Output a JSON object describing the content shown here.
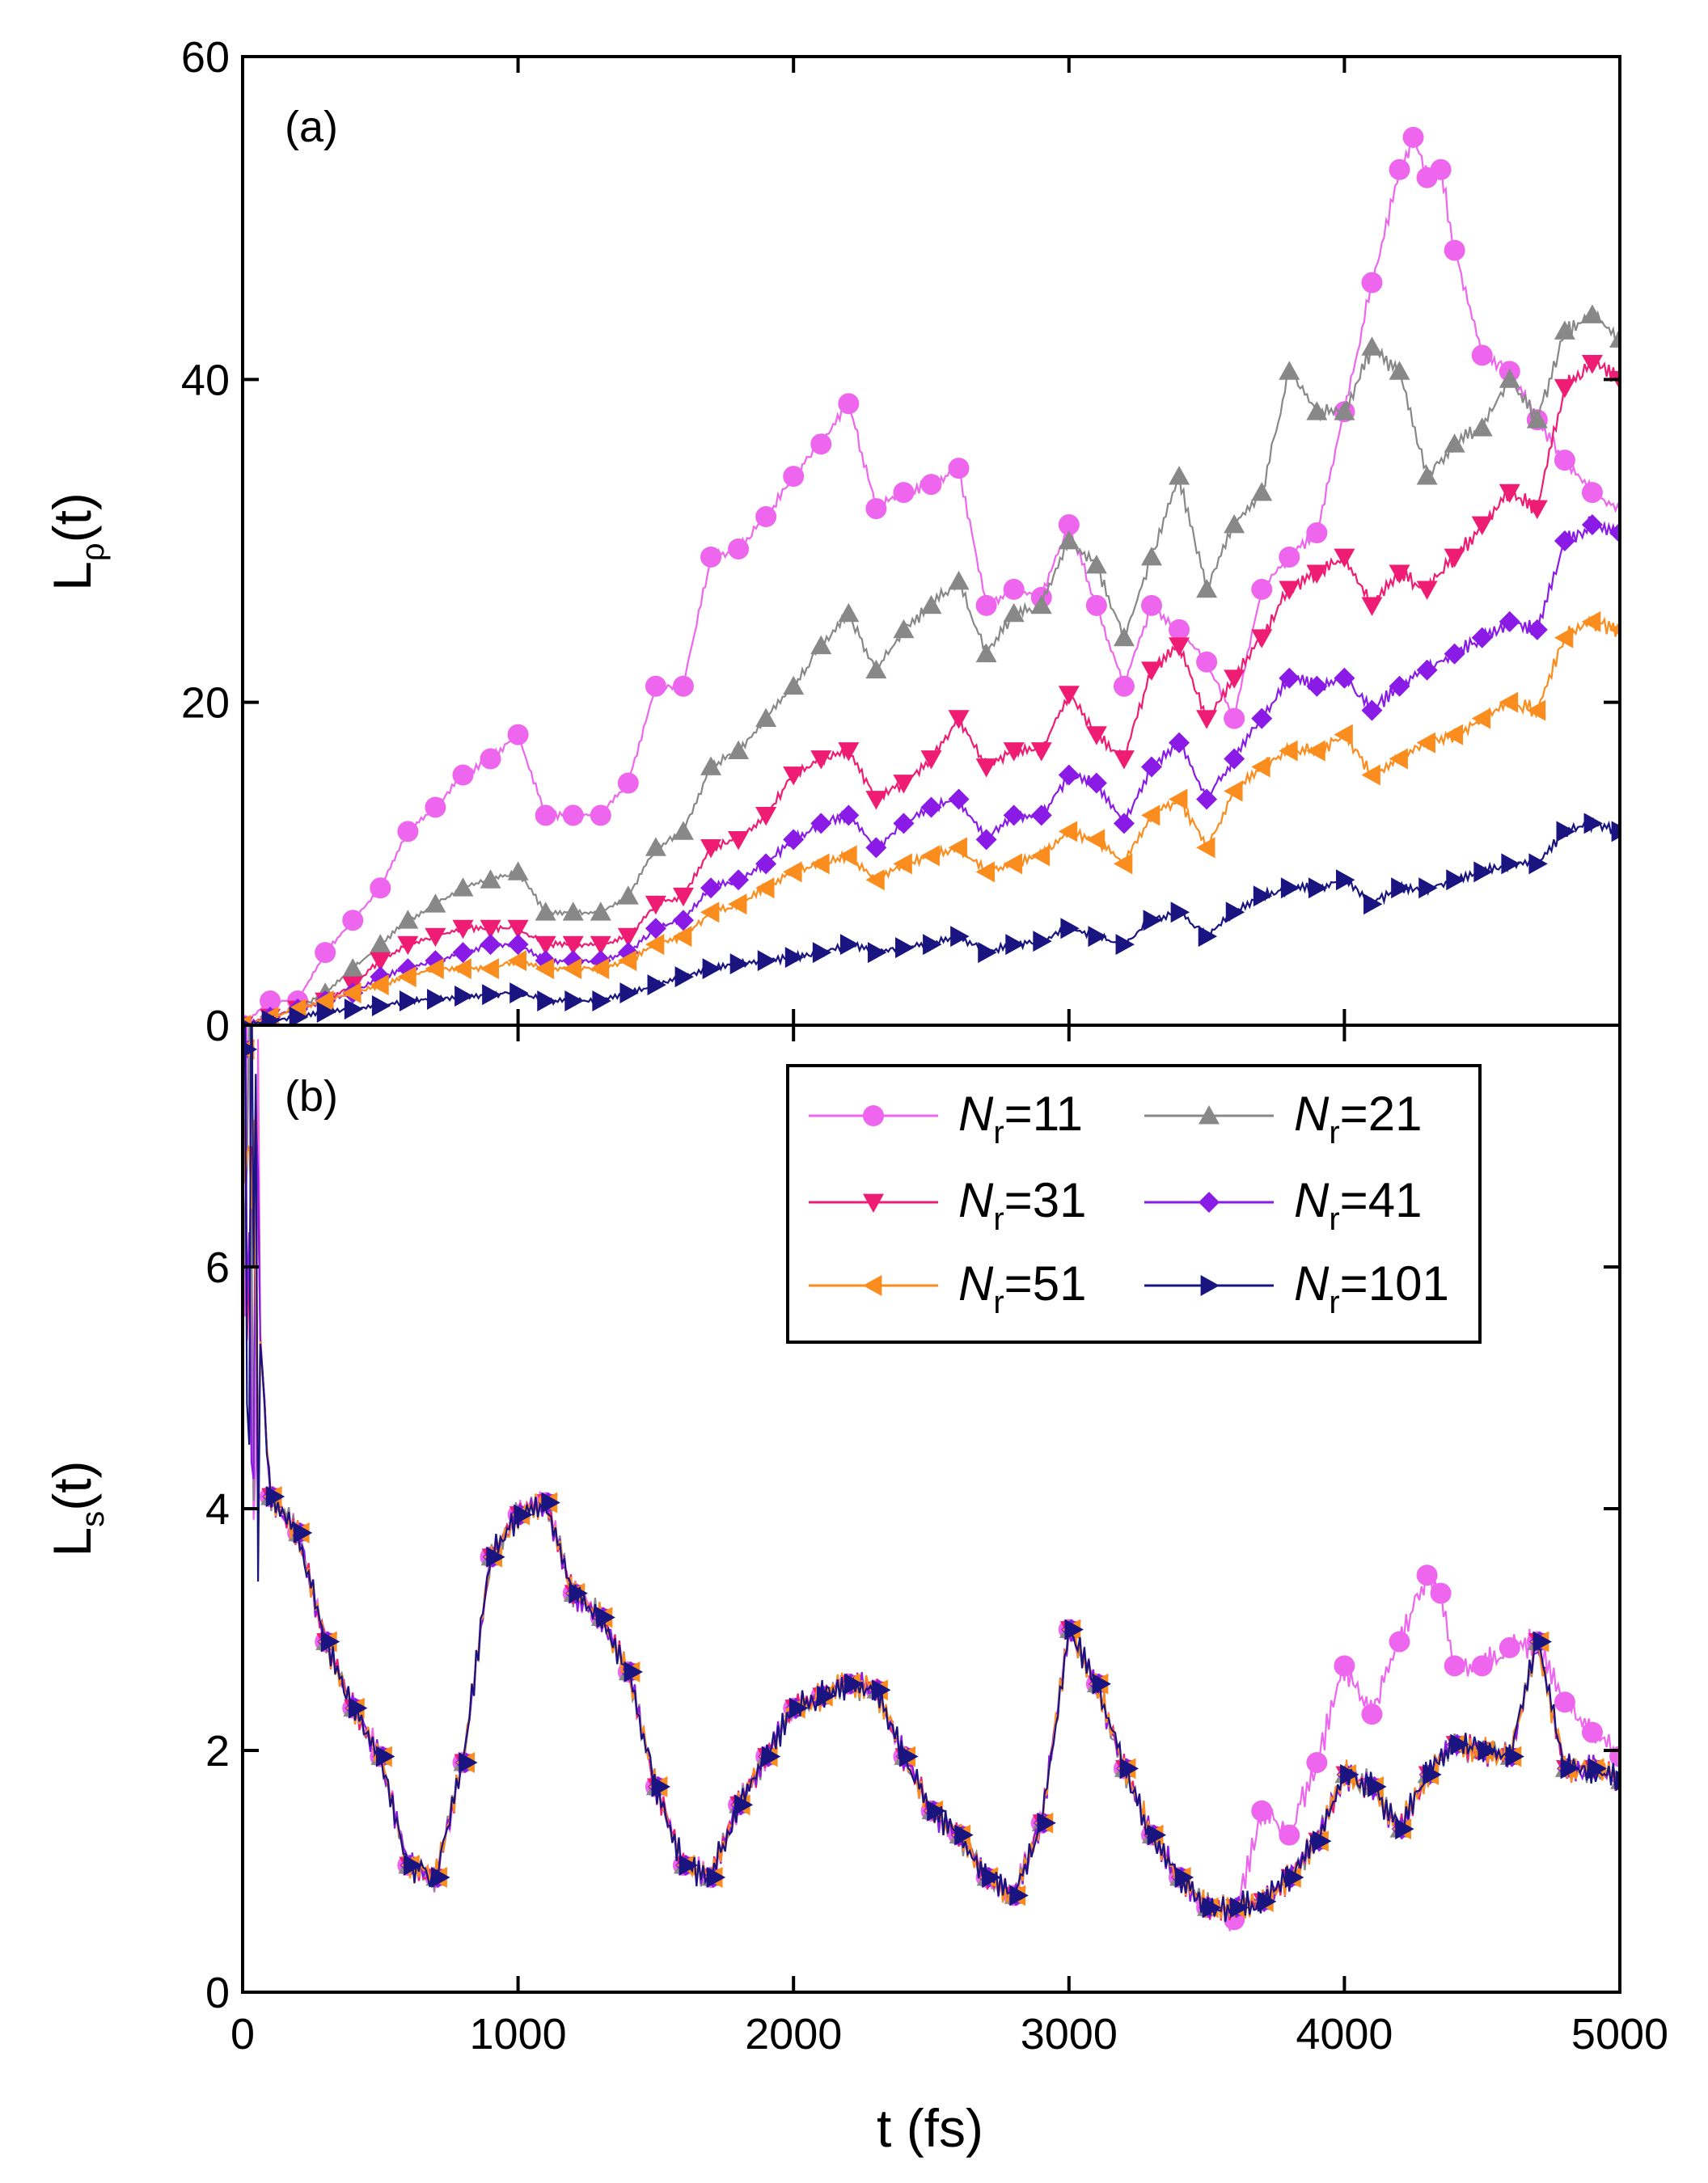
{
  "chart_data": [
    {
      "panel": "a",
      "type": "line",
      "label": "(a)",
      "ylabel": "L",
      "ylabel_sub": "ρ",
      "ylabel_tail": "(t)",
      "xlim": [
        0,
        5000
      ],
      "ylim": [
        0,
        60
      ],
      "xticks": [
        0,
        1000,
        2000,
        3000,
        4000,
        5000
      ],
      "yticks": [
        0,
        20,
        40,
        60
      ],
      "ytick_labels": [
        "0",
        "20",
        "40",
        "60"
      ],
      "series": [
        {
          "name": "N_r=11",
          "color": "#ee66ee",
          "marker": "circle",
          "x": [
            0,
            100,
            200,
            300,
            400,
            500,
            600,
            700,
            800,
            900,
            1000,
            1100,
            1200,
            1300,
            1400,
            1500,
            1600,
            1700,
            1800,
            1900,
            2000,
            2100,
            2200,
            2300,
            2400,
            2500,
            2600,
            2700,
            2800,
            2900,
            3000,
            3100,
            3200,
            3300,
            3400,
            3500,
            3600,
            3700,
            3800,
            3900,
            4000,
            4100,
            4200,
            4250,
            4300,
            4350,
            4400,
            4500,
            4600,
            4700,
            4800,
            4900,
            5000
          ],
          "y": [
            0,
            1.5,
            1.5,
            4.5,
            6.5,
            8.5,
            12,
            13.5,
            15.5,
            16.5,
            18,
            13,
            13,
            13,
            15,
            21,
            21,
            29,
            29.5,
            31.5,
            34,
            36,
            38.5,
            32,
            33,
            33.5,
            34.5,
            26,
            27,
            26.5,
            31,
            26,
            21,
            26,
            24.5,
            22.5,
            19,
            27,
            29,
            30.5,
            38,
            46,
            53,
            55,
            52.5,
            53,
            48,
            41.5,
            40.5,
            37.5,
            35,
            33,
            32
          ]
        },
        {
          "name": "N_r=21",
          "color": "#888888",
          "marker": "triangle-up",
          "x": [
            0,
            100,
            200,
            300,
            400,
            500,
            600,
            700,
            800,
            900,
            1000,
            1100,
            1200,
            1300,
            1400,
            1500,
            1600,
            1700,
            1800,
            1900,
            2000,
            2100,
            2200,
            2300,
            2400,
            2500,
            2600,
            2700,
            2800,
            2900,
            3000,
            3100,
            3200,
            3300,
            3400,
            3500,
            3600,
            3700,
            3800,
            3900,
            4000,
            4100,
            4200,
            4300,
            4400,
            4500,
            4600,
            4700,
            4800,
            4900,
            5000
          ],
          "y": [
            0,
            0.5,
            1,
            2,
            3.5,
            5,
            6.5,
            7.5,
            8.5,
            9,
            9.5,
            7,
            7,
            7,
            8,
            11,
            12,
            16,
            17,
            19,
            21,
            23.5,
            25.5,
            22,
            24.5,
            26,
            27.5,
            23,
            25.5,
            26,
            30,
            28.5,
            24,
            29,
            34,
            27,
            31,
            33,
            40.5,
            38,
            38,
            42,
            40.5,
            34,
            36,
            37,
            40,
            37.5,
            43,
            44,
            42.5
          ]
        },
        {
          "name": "N_r=31",
          "color": "#ee1c72",
          "marker": "triangle-down",
          "x": [
            0,
            100,
            200,
            300,
            400,
            500,
            600,
            700,
            800,
            900,
            1000,
            1100,
            1200,
            1300,
            1400,
            1500,
            1600,
            1700,
            1800,
            1900,
            2000,
            2100,
            2200,
            2300,
            2400,
            2500,
            2600,
            2700,
            2800,
            2900,
            3000,
            3100,
            3200,
            3300,
            3400,
            3500,
            3600,
            3700,
            3800,
            3900,
            4000,
            4100,
            4200,
            4300,
            4400,
            4500,
            4600,
            4700,
            4800,
            4900,
            5000
          ],
          "y": [
            0,
            0.5,
            1,
            1.5,
            2.5,
            4,
            5,
            5.5,
            6,
            6,
            6,
            5,
            5,
            5,
            5.5,
            7.5,
            8,
            11,
            11.5,
            13,
            15.5,
            16.5,
            17,
            14,
            15,
            16.5,
            19,
            16,
            17,
            17,
            20.5,
            18,
            16.5,
            22,
            23.5,
            19,
            21.5,
            24,
            27,
            28,
            29,
            26,
            28,
            27,
            29,
            31,
            33,
            32,
            39.5,
            41,
            40
          ]
        },
        {
          "name": "N_r=41",
          "color": "#8a1ae6",
          "marker": "diamond",
          "x": [
            0,
            100,
            200,
            300,
            400,
            500,
            600,
            700,
            800,
            900,
            1000,
            1100,
            1200,
            1300,
            1400,
            1500,
            1600,
            1700,
            1800,
            1900,
            2000,
            2100,
            2200,
            2300,
            2400,
            2500,
            2600,
            2700,
            2800,
            2900,
            3000,
            3100,
            3200,
            3300,
            3400,
            3500,
            3600,
            3700,
            3800,
            3900,
            4000,
            4100,
            4200,
            4300,
            4400,
            4500,
            4600,
            4700,
            4800,
            4900,
            5000
          ],
          "y": [
            0,
            0.5,
            1,
            1.5,
            2,
            3,
            3.5,
            4,
            4.5,
            5,
            5,
            4,
            4,
            4,
            4.5,
            6,
            6.5,
            8.5,
            9,
            10,
            11.5,
            12.5,
            13,
            11,
            12.5,
            13.5,
            14,
            11.5,
            13,
            13,
            15.5,
            15,
            12.5,
            16,
            17.5,
            14,
            16.5,
            19,
            21.5,
            21,
            21.5,
            19.5,
            21,
            22,
            23,
            24,
            25,
            24.5,
            30,
            31,
            30.5
          ]
        },
        {
          "name": "N_r=51",
          "color": "#fb8c1e",
          "marker": "triangle-left",
          "x": [
            0,
            100,
            200,
            300,
            400,
            500,
            600,
            700,
            800,
            900,
            1000,
            1100,
            1200,
            1300,
            1400,
            1500,
            1600,
            1700,
            1800,
            1900,
            2000,
            2100,
            2200,
            2300,
            2400,
            2500,
            2600,
            2700,
            2800,
            2900,
            3000,
            3100,
            3200,
            3300,
            3400,
            3500,
            3600,
            3700,
            3800,
            3900,
            4000,
            4100,
            4200,
            4300,
            4400,
            4500,
            4600,
            4700,
            4800,
            4900,
            5000
          ],
          "y": [
            0,
            0.5,
            1,
            1.5,
            2,
            2.5,
            3,
            3.5,
            3.5,
            3.5,
            4,
            3.5,
            3.5,
            3.5,
            4,
            5,
            5.5,
            7,
            7.5,
            8.5,
            9.5,
            10,
            10.5,
            9,
            10,
            10.5,
            11,
            9.5,
            10,
            10.5,
            12,
            11.5,
            10,
            13,
            14,
            11,
            14.5,
            16,
            17,
            17,
            18,
            15.5,
            16.5,
            17.5,
            18,
            19,
            20,
            19.5,
            24,
            25,
            24.5
          ]
        },
        {
          "name": "N_r=101",
          "color": "#1a1480",
          "marker": "triangle-right",
          "x": [
            0,
            100,
            200,
            300,
            400,
            500,
            600,
            700,
            800,
            900,
            1000,
            1100,
            1200,
            1300,
            1400,
            1500,
            1600,
            1700,
            1800,
            1900,
            2000,
            2100,
            2200,
            2300,
            2400,
            2500,
            2600,
            2700,
            2800,
            2900,
            3000,
            3100,
            3200,
            3300,
            3400,
            3500,
            3600,
            3700,
            3800,
            3900,
            4000,
            4100,
            4200,
            4300,
            4400,
            4500,
            4600,
            4700,
            4800,
            4900,
            5000
          ],
          "y": [
            0,
            0.3,
            0.5,
            0.8,
            1,
            1.2,
            1.5,
            1.6,
            1.8,
            1.9,
            2,
            1.5,
            1.5,
            1.5,
            2,
            2.5,
            3,
            3.5,
            3.8,
            4,
            4.2,
            4.5,
            5,
            4.5,
            4.8,
            5,
            5.5,
            4.5,
            5,
            5.2,
            6,
            5.5,
            5,
            6.5,
            7,
            5.5,
            7,
            8,
            8.5,
            8.5,
            9,
            7.5,
            8.5,
            8.5,
            9,
            9.5,
            10,
            10,
            12,
            12.5,
            12
          ]
        }
      ]
    },
    {
      "panel": "b",
      "type": "line",
      "label": "(b)",
      "xlabel": "t (fs)",
      "ylabel": "L",
      "ylabel_sub": "s",
      "ylabel_tail": "(t)",
      "xlim": [
        0,
        5000
      ],
      "ylim": [
        0,
        8
      ],
      "xticks": [
        0,
        1000,
        2000,
        3000,
        4000,
        5000
      ],
      "xtick_labels": [
        "0",
        "1000",
        "2000",
        "3000",
        "4000",
        "5000"
      ],
      "yticks": [
        0,
        2,
        4,
        6
      ],
      "ytick_labels": [
        "0",
        "2",
        "4",
        "6"
      ],
      "base_curve": {
        "x": [
          0,
          100,
          200,
          300,
          400,
          500,
          600,
          700,
          800,
          900,
          1000,
          1100,
          1200,
          1300,
          1400,
          1500,
          1600,
          1700,
          1800,
          1900,
          2000,
          2100,
          2200,
          2300,
          2400,
          2500,
          2600,
          2700,
          2800,
          2900,
          3000,
          3100,
          3200,
          3300,
          3400,
          3500,
          3600,
          3700,
          3800,
          3900,
          4000,
          4100,
          4200,
          4300,
          4400,
          4500,
          4600,
          4700,
          4800,
          4900,
          5000
        ],
        "y": [
          7.8,
          4.1,
          3.8,
          2.9,
          2.35,
          1.95,
          1.05,
          0.95,
          1.9,
          3.6,
          3.95,
          4.05,
          3.3,
          3.1,
          2.65,
          1.7,
          1.05,
          0.95,
          1.55,
          1.95,
          2.35,
          2.45,
          2.55,
          2.5,
          1.95,
          1.5,
          1.3,
          0.95,
          0.8,
          1.4,
          3.0,
          2.55,
          1.85,
          1.3,
          0.95,
          0.7,
          0.7,
          0.75,
          0.95,
          1.25,
          1.8,
          1.7,
          1.35,
          1.8,
          2.05,
          2.0,
          1.95,
          2.9,
          1.85,
          1.85,
          1.75
        ]
      },
      "series": [
        {
          "name": "N_r=11",
          "color": "#ee66ee",
          "marker": "circle",
          "deviation": {
            "x": [
              3600,
              3700,
              3800,
              3900,
              4000,
              4100,
              4200,
              4300,
              4350,
              4400,
              4500,
              4600,
              4700,
              4800,
              4900,
              5000
            ],
            "y": [
              0.6,
              1.5,
              1.3,
              1.9,
              2.7,
              2.3,
              2.9,
              3.45,
              3.3,
              2.7,
              2.7,
              2.85,
              2.9,
              2.4,
              2.15,
              1.95
            ]
          }
        },
        {
          "name": "N_r=21",
          "color": "#888888",
          "marker": "triangle-up"
        },
        {
          "name": "N_r=31",
          "color": "#ee1c72",
          "marker": "triangle-down"
        },
        {
          "name": "N_r=41",
          "color": "#8a1ae6",
          "marker": "diamond"
        },
        {
          "name": "N_r=51",
          "color": "#fb8c1e",
          "marker": "triangle-left"
        },
        {
          "name": "N_r=101",
          "color": "#1a1480",
          "marker": "triangle-right"
        }
      ]
    }
  ],
  "legend": {
    "placement": "top-right of panel (b)",
    "entries": [
      {
        "prefix": "N",
        "sub": "r",
        "suffix": "=11"
      },
      {
        "prefix": "N",
        "sub": "r",
        "suffix": "=21"
      },
      {
        "prefix": "N",
        "sub": "r",
        "suffix": "=31"
      },
      {
        "prefix": "N",
        "sub": "r",
        "suffix": "=41"
      },
      {
        "prefix": "N",
        "sub": "r",
        "suffix": "=51"
      },
      {
        "prefix": "N",
        "sub": "r",
        "suffix": "=101"
      }
    ]
  }
}
